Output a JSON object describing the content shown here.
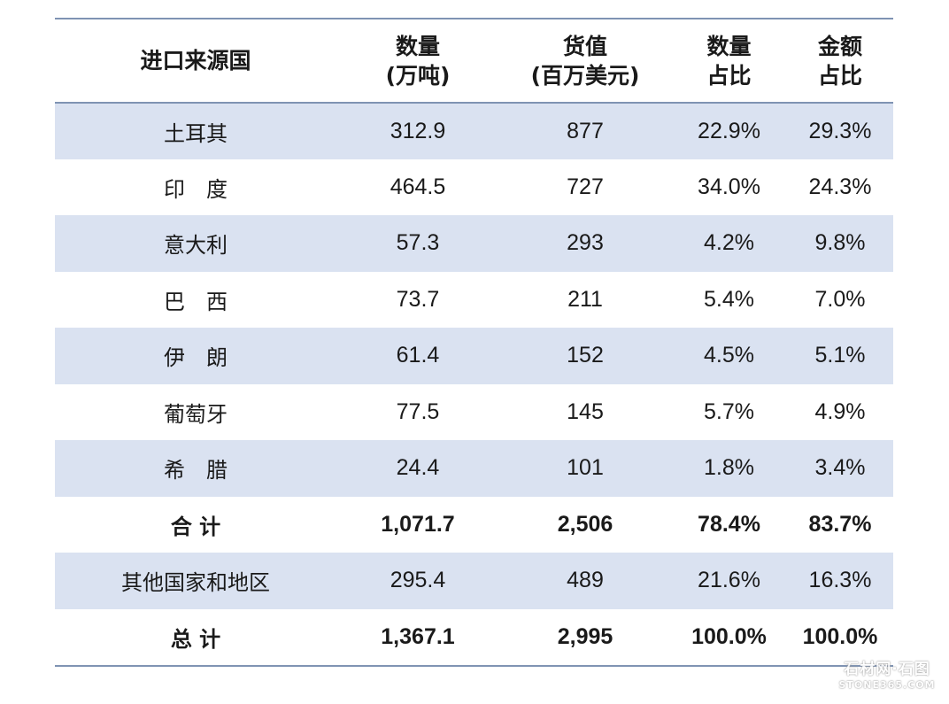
{
  "table": {
    "headers": [
      [
        "进口来源国"
      ],
      [
        "数量",
        "(万吨)"
      ],
      [
        "货值",
        "(百万美元)"
      ],
      [
        "数量",
        "占比"
      ],
      [
        "金额",
        "占比"
      ]
    ],
    "rows": [
      {
        "country": "土耳其",
        "qty": "312.9",
        "value": "877",
        "qty_share": "22.9%",
        "value_share": "29.3%"
      },
      {
        "country": "印　度",
        "qty": "464.5",
        "value": "727",
        "qty_share": "34.0%",
        "value_share": "24.3%"
      },
      {
        "country": "意大利",
        "qty": "57.3",
        "value": "293",
        "qty_share": "4.2%",
        "value_share": "9.8%"
      },
      {
        "country": "巴　西",
        "qty": "73.7",
        "value": "211",
        "qty_share": "5.4%",
        "value_share": "7.0%"
      },
      {
        "country": "伊　朗",
        "qty": "61.4",
        "value": "152",
        "qty_share": "4.5%",
        "value_share": "5.1%"
      },
      {
        "country": "葡萄牙",
        "qty": "77.5",
        "value": "145",
        "qty_share": "5.7%",
        "value_share": "4.9%"
      },
      {
        "country": "希　腊",
        "qty": "24.4",
        "value": "101",
        "qty_share": "1.8%",
        "value_share": "3.4%"
      },
      {
        "country": "合 计",
        "qty": "1,071.7",
        "value": "2,506",
        "qty_share": "78.4%",
        "value_share": "83.7%"
      },
      {
        "country": "其他国家和地区",
        "qty": "295.4",
        "value": "489",
        "qty_share": "21.6%",
        "value_share": "16.3%"
      },
      {
        "country": "总 计",
        "qty": "1,367.1",
        "value": "2,995",
        "qty_share": "100.0%",
        "value_share": "100.0%"
      }
    ]
  },
  "watermark": {
    "line1": "石材网·石图",
    "line2": "STONE365.COM"
  },
  "colors": {
    "rule": "#7f93b3",
    "shaded_row": "#dae2f1"
  }
}
